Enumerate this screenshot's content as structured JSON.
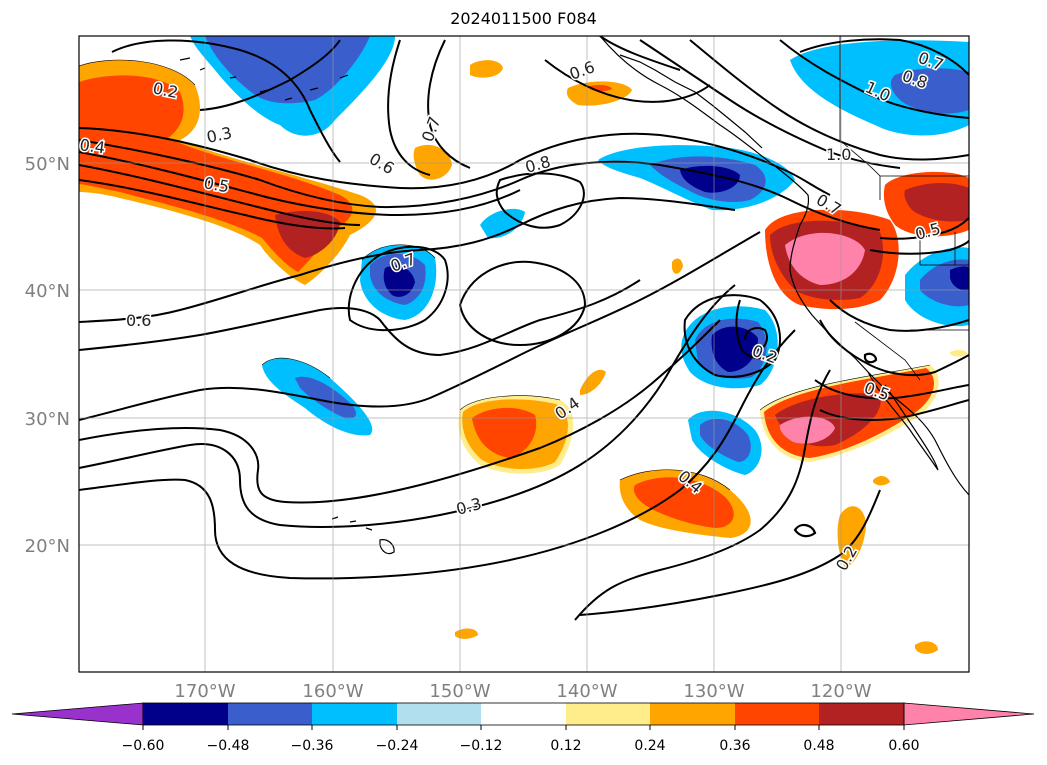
{
  "map": {
    "title": "2024011500 F084",
    "lat_labels": [
      "20°N",
      "30°N",
      "40°N",
      "50°N"
    ],
    "lon_labels": [
      "170°W",
      "160°W",
      "150°W",
      "140°W",
      "130°W",
      "120°W"
    ],
    "contour_labels": [
      "0.2",
      "0.3",
      "0.4",
      "0.5",
      "0.6",
      "0.7",
      "0.8",
      "1.0"
    ]
  },
  "colorbar": {
    "ticks": [
      "−0.60",
      "−0.48",
      "−0.36",
      "−0.24",
      "−0.12",
      "0.12",
      "0.24",
      "0.36",
      "0.48",
      "0.60"
    ],
    "colors": [
      "#9932cc",
      "#00008b",
      "#3a5fcd",
      "#00bfff",
      "#b2dfee",
      "#ffffff",
      "#ffec8b",
      "#ffa500",
      "#ff4500",
      "#b22222",
      "#ff82ab"
    ]
  }
}
